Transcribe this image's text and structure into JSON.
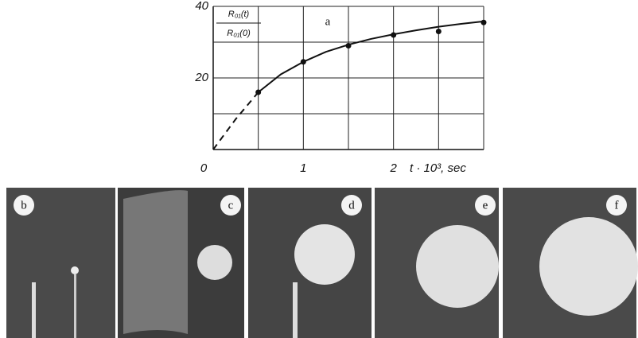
{
  "chart_data": {
    "type": "line",
    "y_label": {
      "num": "R₀₁(t)",
      "den": "R₀₁(0)"
    },
    "x_label": "t · 10³, sec",
    "annotation": "a",
    "xlim": [
      0,
      3
    ],
    "ylim": [
      0,
      40
    ],
    "xticks": [
      0,
      1,
      2
    ],
    "yticks": [
      20,
      40
    ],
    "x_gridlines": [
      0.5,
      1,
      1.5,
      2,
      2.5,
      3
    ],
    "y_gridlines": [
      10,
      20,
      30,
      40
    ],
    "grid": true,
    "series": [
      {
        "x": [
          0.5,
          1,
          1.5,
          2,
          2.5,
          3
        ],
        "values": [
          16,
          24.5,
          29,
          32,
          33,
          35.5
        ],
        "color": "#111111",
        "style": "points"
      },
      {
        "x": [
          0,
          0.25,
          0.5
        ],
        "values": [
          0,
          8.5,
          16
        ],
        "color": "#111111",
        "style": "dashed"
      },
      {
        "x": [
          0.5,
          0.75,
          1,
          1.25,
          1.5,
          1.75,
          2,
          2.25,
          2.5,
          2.75,
          3
        ],
        "values": [
          16,
          21,
          24.5,
          27.3,
          29.3,
          30.9,
          32.2,
          33.3,
          34.3,
          35.1,
          35.8
        ],
        "color": "#111111",
        "style": "solid"
      }
    ]
  },
  "panels": [
    {
      "label": "b"
    },
    {
      "label": "c"
    },
    {
      "label": "d"
    },
    {
      "label": "e"
    },
    {
      "label": "f"
    }
  ]
}
